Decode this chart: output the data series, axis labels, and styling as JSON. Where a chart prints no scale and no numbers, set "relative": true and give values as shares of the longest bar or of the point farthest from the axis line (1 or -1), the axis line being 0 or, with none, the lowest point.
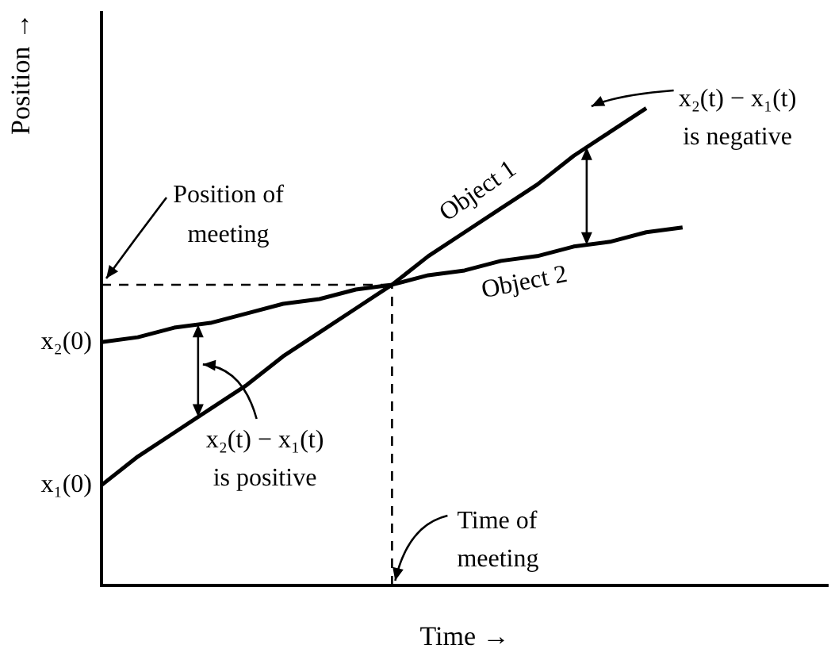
{
  "chart_data": {
    "type": "line",
    "relative": true,
    "xlabel": "Time →",
    "ylabel": "Position →",
    "categories": [
      null,
      null,
      null,
      null,
      null,
      null,
      null,
      null,
      null,
      null,
      null,
      null,
      null,
      null,
      null,
      null,
      null,
      null,
      null,
      null,
      null
    ],
    "series": [
      {
        "name": "Object 1",
        "color": "#000000",
        "values": [
          0.21,
          0.27,
          0.32,
          0.37,
          0.42,
          0.48,
          0.53,
          0.58,
          0.63,
          0.69,
          0.74,
          0.79,
          0.84,
          0.9,
          0.95,
          1,
          null,
          null,
          null,
          null,
          null
        ]
      },
      {
        "name": "Object 2",
        "color": "#000000",
        "values": [
          0.51,
          0.52,
          0.54,
          0.55,
          0.57,
          0.59,
          0.6,
          0.62,
          0.63,
          0.65,
          0.66,
          0.68,
          0.69,
          0.71,
          0.72,
          0.74,
          0.75,
          null,
          null,
          null,
          null
        ]
      }
    ],
    "ref_lines": [
      {
        "axis": "y",
        "value": 0.63,
        "label": "Position of meeting",
        "line_style": "dashed"
      },
      {
        "axis": "x",
        "label": "Time of meeting",
        "line_style": "dashed"
      }
    ],
    "annotations": [
      "x₂(0)",
      "x₁(0)",
      "x₂(t) − x₁(t) is positive",
      "x₂(t) − x₁(t) is negative"
    ]
  }
}
